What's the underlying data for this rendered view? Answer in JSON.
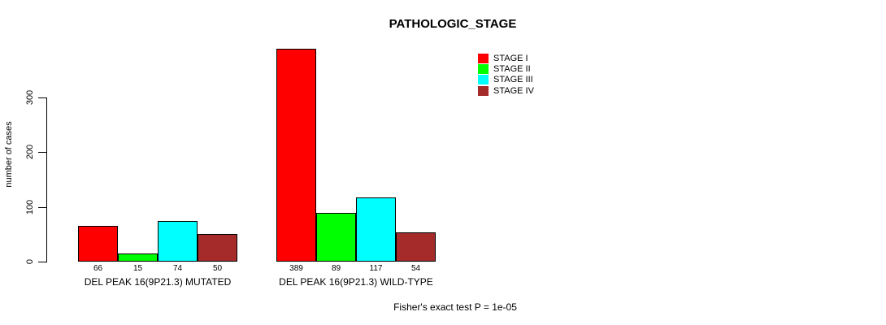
{
  "chart_data": {
    "type": "bar",
    "title": "PATHOLOGIC_STAGE",
    "ylabel": "number of cases",
    "xlabel": "",
    "yticks": [
      0,
      100,
      200,
      300
    ],
    "ylim": [
      0,
      397
    ],
    "grid": false,
    "legend_position": "top-right",
    "series": [
      {
        "name": "STAGE I",
        "color": "#ff0000"
      },
      {
        "name": "STAGE II",
        "color": "#00ff00"
      },
      {
        "name": "STAGE III",
        "color": "#00ffff"
      },
      {
        "name": "STAGE IV",
        "color": "#a52a2a"
      }
    ],
    "groups": [
      {
        "label": "DEL PEAK 16(9P21.3) MUTATED",
        "values": [
          66,
          15,
          74,
          50
        ]
      },
      {
        "label": "DEL PEAK 16(9P21.3) WILD-TYPE",
        "values": [
          389,
          89,
          117,
          54
        ]
      }
    ],
    "annotation": "Fisher's exact test P = 1e-05"
  }
}
